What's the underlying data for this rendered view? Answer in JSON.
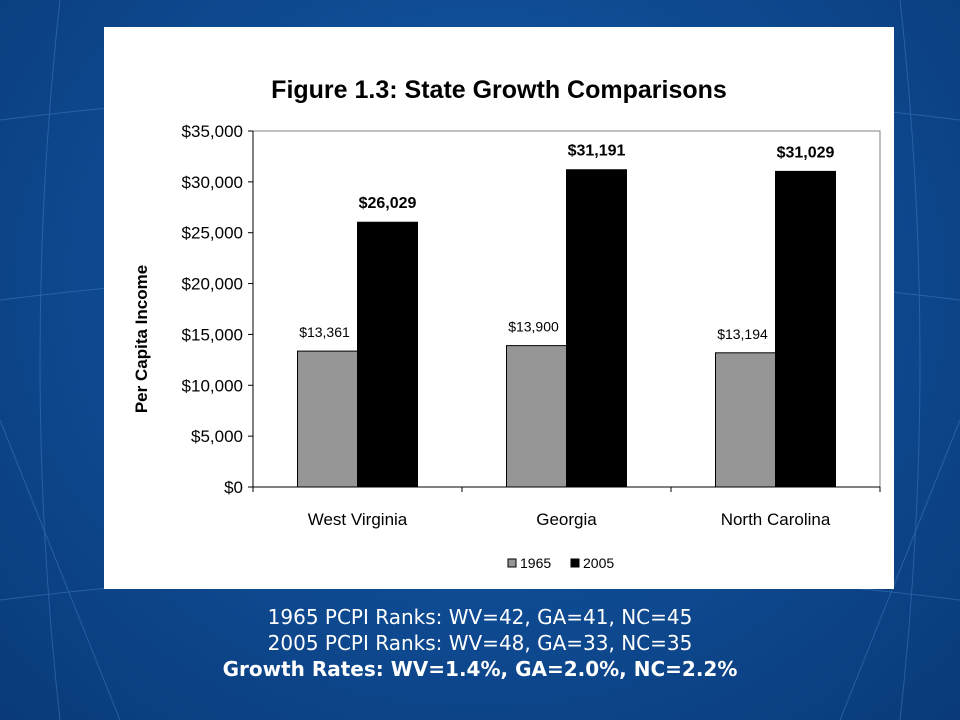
{
  "chart_data": {
    "type": "bar",
    "title": "Figure 1.3: State Growth Comparisons",
    "xlabel": "",
    "ylabel": "Per Capita Income",
    "categories": [
      "West Virginia",
      "Georgia",
      "North Carolina"
    ],
    "series": [
      {
        "name": "1965",
        "values": [
          13361,
          13900,
          13194
        ],
        "labels": [
          "$13,361",
          "$13,900",
          "$13,194"
        ],
        "color": "#969696",
        "label_bold": false
      },
      {
        "name": "2005",
        "values": [
          26029,
          31191,
          31029
        ],
        "labels": [
          "$26,029",
          "$31,191",
          "$31,029"
        ],
        "color": "#000000",
        "label_bold": true
      }
    ],
    "ylim": [
      0,
      35000
    ],
    "yticks": [
      0,
      5000,
      10000,
      15000,
      20000,
      25000,
      30000,
      35000
    ],
    "ytick_labels": [
      "$0",
      "$5,000",
      "$10,000",
      "$15,000",
      "$20,000",
      "$25,000",
      "$30,000",
      "$35,000"
    ],
    "grid": false,
    "legend_position": "bottom"
  },
  "captions": {
    "line1": "1965 PCPI Ranks: WV=42, GA=41, NC=45",
    "line2": "2005 PCPI Ranks: WV=48, GA=33, NC=35",
    "line3": "Growth Rates: WV=1.4%, GA=2.0%, NC=2.2%"
  },
  "colors": {
    "background": "#0f4d96",
    "panel": "#ffffff"
  }
}
